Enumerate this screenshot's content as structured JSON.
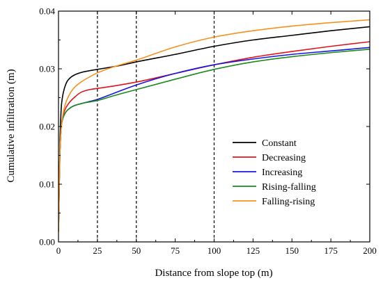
{
  "chart_data": {
    "type": "line",
    "title": "",
    "xlabel": "Distance from slope top (m)",
    "ylabel": "Cumulative infiltration  (m)",
    "xlim": [
      0,
      200
    ],
    "ylim": [
      0,
      0.04
    ],
    "xticks": [
      0,
      25,
      50,
      75,
      100,
      125,
      150,
      175,
      200
    ],
    "yticks": [
      0.0,
      0.01,
      0.02,
      0.03,
      0.04
    ],
    "ytick_labels": [
      "0.00",
      "0.01",
      "0.02",
      "0.03",
      "0.04"
    ],
    "grid": false,
    "legend_position": "center-right",
    "reference_lines": [
      {
        "x": 25,
        "style": "dashed",
        "color": "#000000"
      },
      {
        "x": 50,
        "style": "dashed",
        "color": "#000000"
      },
      {
        "x": 100,
        "style": "dashed",
        "color": "#000000"
      }
    ],
    "series": [
      {
        "name": "Constant",
        "color": "#000000",
        "x": [
          0,
          1,
          2,
          4,
          6,
          10,
          15,
          25,
          40,
          50,
          75,
          100,
          125,
          150,
          175,
          200
        ],
        "y": [
          0.0018,
          0.018,
          0.024,
          0.0268,
          0.028,
          0.0289,
          0.0294,
          0.0299,
          0.0306,
          0.0312,
          0.0325,
          0.0339,
          0.035,
          0.0358,
          0.0366,
          0.0373
        ]
      },
      {
        "name": "Decreasing",
        "color": "#e0141a",
        "x": [
          0,
          1,
          2,
          4,
          6,
          10,
          15,
          20,
          25,
          35,
          50,
          75,
          100,
          125,
          150,
          175,
          200
        ],
        "y": [
          0.0018,
          0.016,
          0.0205,
          0.0228,
          0.0238,
          0.025,
          0.026,
          0.0264,
          0.0266,
          0.027,
          0.0277,
          0.0292,
          0.0307,
          0.032,
          0.033,
          0.0339,
          0.0347
        ]
      },
      {
        "name": "Increasing",
        "color": "#1416e0",
        "x": [
          0,
          1,
          2,
          4,
          6,
          10,
          15,
          25,
          35,
          50,
          75,
          100,
          125,
          150,
          175,
          200
        ],
        "y": [
          0.0018,
          0.016,
          0.0205,
          0.0222,
          0.0229,
          0.0236,
          0.024,
          0.0247,
          0.0257,
          0.0272,
          0.0292,
          0.0307,
          0.0317,
          0.0325,
          0.0331,
          0.0337
        ]
      },
      {
        "name": "Rising-falling",
        "color": "#1a8a1a",
        "x": [
          0,
          1,
          2,
          4,
          6,
          10,
          15,
          25,
          35,
          50,
          75,
          100,
          125,
          150,
          175,
          200
        ],
        "y": [
          0.0018,
          0.016,
          0.0205,
          0.0222,
          0.0229,
          0.0236,
          0.024,
          0.0245,
          0.0253,
          0.0264,
          0.0282,
          0.0299,
          0.0312,
          0.0321,
          0.0328,
          0.0334
        ]
      },
      {
        "name": "Falling-rising",
        "color": "#f5921e",
        "x": [
          0,
          1,
          2,
          4,
          6,
          10,
          15,
          20,
          25,
          35,
          45,
          50,
          75,
          100,
          125,
          150,
          175,
          200
        ],
        "y": [
          0.0018,
          0.016,
          0.0205,
          0.0235,
          0.025,
          0.0267,
          0.0278,
          0.0286,
          0.0293,
          0.0303,
          0.0311,
          0.0315,
          0.0338,
          0.0355,
          0.0366,
          0.0374,
          0.038,
          0.0385
        ]
      }
    ]
  }
}
